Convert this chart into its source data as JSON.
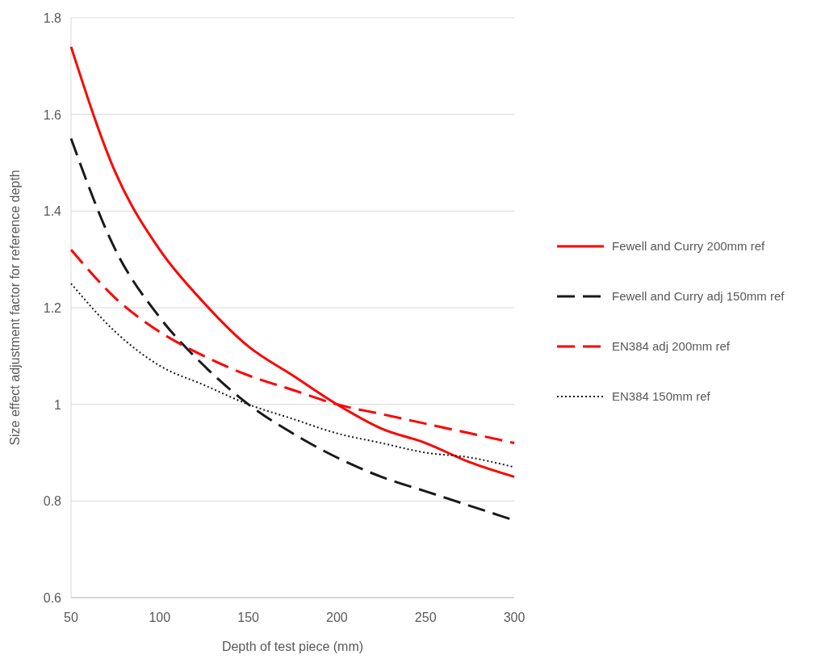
{
  "chart_data": {
    "type": "line",
    "xlabel": "Depth of test piece (mm)",
    "ylabel": "Size effect adjustment factor for reference depth",
    "x": [
      50,
      75,
      100,
      125,
      150,
      175,
      200,
      225,
      250,
      275,
      300
    ],
    "xlim": [
      50,
      300
    ],
    "xticks": [
      50,
      100,
      150,
      200,
      250,
      300
    ],
    "ylim": [
      0.6,
      1.8
    ],
    "yticks": [
      0.6,
      0.8,
      1,
      1.2,
      1.4,
      1.6,
      1.8
    ],
    "grid": "y",
    "legend": "right",
    "marker": "none",
    "series": [
      {
        "name": "Fewell and Curry 200mm ref",
        "color": "#ff0000",
        "line_style": "solid",
        "values": [
          1.74,
          1.48,
          1.32,
          1.21,
          1.12,
          1.06,
          1.0,
          0.95,
          0.92,
          0.88,
          0.85
        ]
      },
      {
        "name": "Fewell and Curry adj 150mm ref",
        "color": "#1a1a1a",
        "line_style": "dashed",
        "values": [
          1.55,
          1.32,
          1.18,
          1.08,
          1.0,
          0.94,
          0.89,
          0.85,
          0.82,
          0.79,
          0.76
        ]
      },
      {
        "name": "EN384 adj 200mm ref",
        "color": "#ff0000",
        "line_style": "dashed",
        "values": [
          1.32,
          1.22,
          1.15,
          1.1,
          1.06,
          1.03,
          1.0,
          0.98,
          0.96,
          0.94,
          0.92
        ]
      },
      {
        "name": "EN384 150mm ref",
        "color": "#1a1a1a",
        "line_style": "dotted",
        "values": [
          1.25,
          1.15,
          1.08,
          1.04,
          1.0,
          0.97,
          0.94,
          0.92,
          0.9,
          0.89,
          0.87
        ]
      }
    ]
  }
}
